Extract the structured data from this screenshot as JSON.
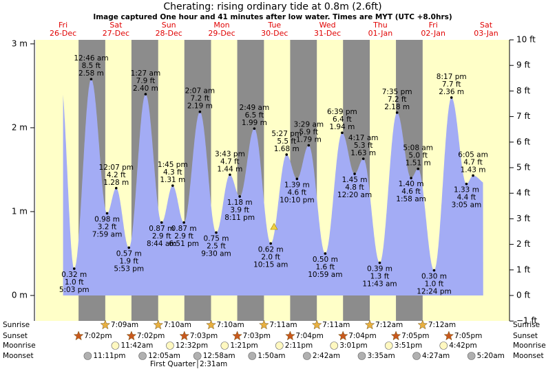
{
  "title": "Cherating: rising  ordinary tide at 0.8m (2.6ft)",
  "subtitle": "Image captured One hour and 41 minutes after low water. Times are MYT (UTC +8.0hrs)",
  "days": [
    {
      "day": "Fri",
      "date": "26-Dec"
    },
    {
      "day": "Sat",
      "date": "27-Dec"
    },
    {
      "day": "Sun",
      "date": "28-Dec"
    },
    {
      "day": "Mon",
      "date": "29-Dec"
    },
    {
      "day": "Tue",
      "date": "30-Dec"
    },
    {
      "day": "Wed",
      "date": "31-Dec"
    },
    {
      "day": "Thu",
      "date": "01-Jan"
    },
    {
      "day": "Fri",
      "date": "02-Jan"
    },
    {
      "day": "Sat",
      "date": "03-Jan"
    }
  ],
  "axis_m": [
    {
      "value": 0,
      "label": "0 m"
    },
    {
      "value": 1,
      "label": "1 m"
    },
    {
      "value": 2,
      "label": "2 m"
    },
    {
      "value": 3,
      "label": "3 m"
    }
  ],
  "axis_ft": [
    {
      "value": -1,
      "label": "−1 ft"
    },
    {
      "value": 0,
      "label": "0 ft"
    },
    {
      "value": 1,
      "label": "1 ft"
    },
    {
      "value": 2,
      "label": "2 ft"
    },
    {
      "value": 3,
      "label": "3 ft"
    },
    {
      "value": 4,
      "label": "4 ft"
    },
    {
      "value": 5,
      "label": "5 ft"
    },
    {
      "value": 6,
      "label": "6 ft"
    },
    {
      "value": 7,
      "label": "7 ft"
    },
    {
      "value": 8,
      "label": "8 ft"
    },
    {
      "value": 9,
      "label": "9 ft"
    },
    {
      "value": 10,
      "label": "10 ft"
    }
  ],
  "tides": [
    {
      "time": "5:03 pm",
      "ft": {
        "value": 1.0,
        "label": "1.0 ft"
      },
      "m": {
        "value": 0.32,
        "label": "0.32 m"
      }
    },
    {
      "time": "12:46 am",
      "ft": {
        "value": 8.5,
        "label": "8.5 ft"
      },
      "m": {
        "value": 2.58,
        "label": "2.58 m"
      }
    },
    {
      "time": "7:59 am",
      "ft": {
        "value": 3.2,
        "label": "3.2 ft"
      },
      "m": {
        "value": 0.98,
        "label": "0.98 m"
      }
    },
    {
      "time": "12:07 pm",
      "ft": {
        "value": 4.2,
        "label": "4.2 ft"
      },
      "m": {
        "value": 1.28,
        "label": "1.28 m"
      }
    },
    {
      "time": "5:53 pm",
      "ft": {
        "value": 1.9,
        "label": "1.9 ft"
      },
      "m": {
        "value": 0.57,
        "label": "0.57 m"
      }
    },
    {
      "time": "1:27 am",
      "ft": {
        "value": 7.9,
        "label": "7.9 ft"
      },
      "m": {
        "value": 2.4,
        "label": "2.40 m"
      }
    },
    {
      "time": "8:44 am",
      "ft": {
        "value": 2.9,
        "label": "2.9 ft"
      },
      "m": {
        "value": 0.87,
        "label": "0.87 m"
      }
    },
    {
      "time": "1:45 pm",
      "ft": {
        "value": 4.3,
        "label": "4.3 ft"
      },
      "m": {
        "value": 1.31,
        "label": "1.31 m"
      }
    },
    {
      "time": "6:51 pm",
      "ft": {
        "value": 2.9,
        "label": "2.9 ft"
      },
      "m": {
        "value": 0.87,
        "label": "0.87 m"
      }
    },
    {
      "time": "2:07 am",
      "ft": {
        "value": 7.2,
        "label": "7.2 ft"
      },
      "m": {
        "value": 2.19,
        "label": "2.19 m"
      }
    },
    {
      "time": "9:30 am",
      "ft": {
        "value": 2.5,
        "label": "2.5 ft"
      },
      "m": {
        "value": 0.75,
        "label": "0.75 m"
      }
    },
    {
      "time": "3:43 pm",
      "ft": {
        "value": 4.7,
        "label": "4.7 ft"
      },
      "m": {
        "value": 1.44,
        "label": "1.44 m"
      }
    },
    {
      "time": "8:11 pm",
      "ft": {
        "value": 3.9,
        "label": "3.9 ft"
      },
      "m": {
        "value": 1.18,
        "label": "1.18 m"
      }
    },
    {
      "time": "2:49 am",
      "ft": {
        "value": 6.5,
        "label": "6.5 ft"
      },
      "m": {
        "value": 1.99,
        "label": "1.99 m"
      }
    },
    {
      "time": "10:15 am",
      "ft": {
        "value": 2.0,
        "label": "2.0 ft"
      },
      "m": {
        "value": 0.62,
        "label": "0.62 m"
      }
    },
    {
      "time": "5:27 pm",
      "ft": {
        "value": 5.5,
        "label": "5.5 ft"
      },
      "m": {
        "value": 1.68,
        "label": "1.68 m"
      }
    },
    {
      "time": "10:10 pm",
      "ft": {
        "value": 4.6,
        "label": "4.6 ft"
      },
      "m": {
        "value": 1.39,
        "label": "1.39 m"
      }
    },
    {
      "time": "3:29 am",
      "ft": {
        "value": 5.9,
        "label": "5.9 ft"
      },
      "m": {
        "value": 1.79,
        "label": "1.79 m"
      }
    },
    {
      "time": "10:59 am",
      "ft": {
        "value": 1.6,
        "label": "1.6 ft"
      },
      "m": {
        "value": 0.5,
        "label": "0.50 m"
      }
    },
    {
      "time": "6:39 pm",
      "ft": {
        "value": 6.4,
        "label": "6.4 ft"
      },
      "m": {
        "value": 1.94,
        "label": "1.94 m"
      }
    },
    {
      "time": "12:20 am",
      "ft": {
        "value": 4.8,
        "label": "4.8 ft"
      },
      "m": {
        "value": 1.45,
        "label": "1.45 m"
      }
    },
    {
      "time": "4:17 am",
      "ft": {
        "value": 5.3,
        "label": "5.3 ft"
      },
      "m": {
        "value": 1.63,
        "label": "1.63 m"
      }
    },
    {
      "time": "11:43 am",
      "ft": {
        "value": 1.3,
        "label": "1.3 ft"
      },
      "m": {
        "value": 0.39,
        "label": "0.39 m"
      }
    },
    {
      "time": "7:35 pm",
      "ft": {
        "value": 7.2,
        "label": "7.2 ft"
      },
      "m": {
        "value": 2.18,
        "label": "2.18 m"
      }
    },
    {
      "time": "1:58 am",
      "ft": {
        "value": 4.6,
        "label": "4.6 ft"
      },
      "m": {
        "value": 1.4,
        "label": "1.40 m"
      }
    },
    {
      "time": "5:08 am",
      "ft": {
        "value": 5.0,
        "label": "5.0 ft"
      },
      "m": {
        "value": 1.51,
        "label": "1.51 m"
      }
    },
    {
      "time": "12:24 pm",
      "ft": {
        "value": 1.0,
        "label": "1.0 ft"
      },
      "m": {
        "value": 0.3,
        "label": "0.30 m"
      }
    },
    {
      "time": "8:17 pm",
      "ft": {
        "value": 7.7,
        "label": "7.7 ft"
      },
      "m": {
        "value": 2.36,
        "label": "2.36 m"
      }
    },
    {
      "time": "3:05 am",
      "ft": {
        "value": 4.4,
        "label": "4.4 ft"
      },
      "m": {
        "value": 1.33,
        "label": "1.33 m"
      }
    },
    {
      "time": "6:05 am",
      "ft": {
        "value": 4.7,
        "label": "4.7 ft"
      },
      "m": {
        "value": 1.43,
        "label": "1.43 m"
      }
    }
  ],
  "rows": [
    {
      "name": "Sunrise",
      "times": [
        "7:09am",
        "7:10am",
        "7:10am",
        "7:11am",
        "7:11am",
        "7:12am",
        "7:12am"
      ]
    },
    {
      "name": "Sunset",
      "times": [
        "7:02pm",
        "7:02pm",
        "7:03pm",
        "7:03pm",
        "7:04pm",
        "7:04pm",
        "7:05pm",
        "7:05pm"
      ]
    },
    {
      "name": "Moonrise",
      "times": [
        "11:42am",
        "12:32pm",
        "1:21pm",
        "2:11pm",
        "3:01pm",
        "3:51pm",
        "4:42pm"
      ]
    },
    {
      "name": "Moonset",
      "times": [
        "11:11pm",
        "12:05am",
        "12:58am",
        "1:50am",
        "2:42am",
        "3:35am",
        "4:27am",
        "5:20am"
      ]
    }
  ],
  "moon_phase": {
    "name": "First Quarter",
    "time": "2:31am"
  }
}
